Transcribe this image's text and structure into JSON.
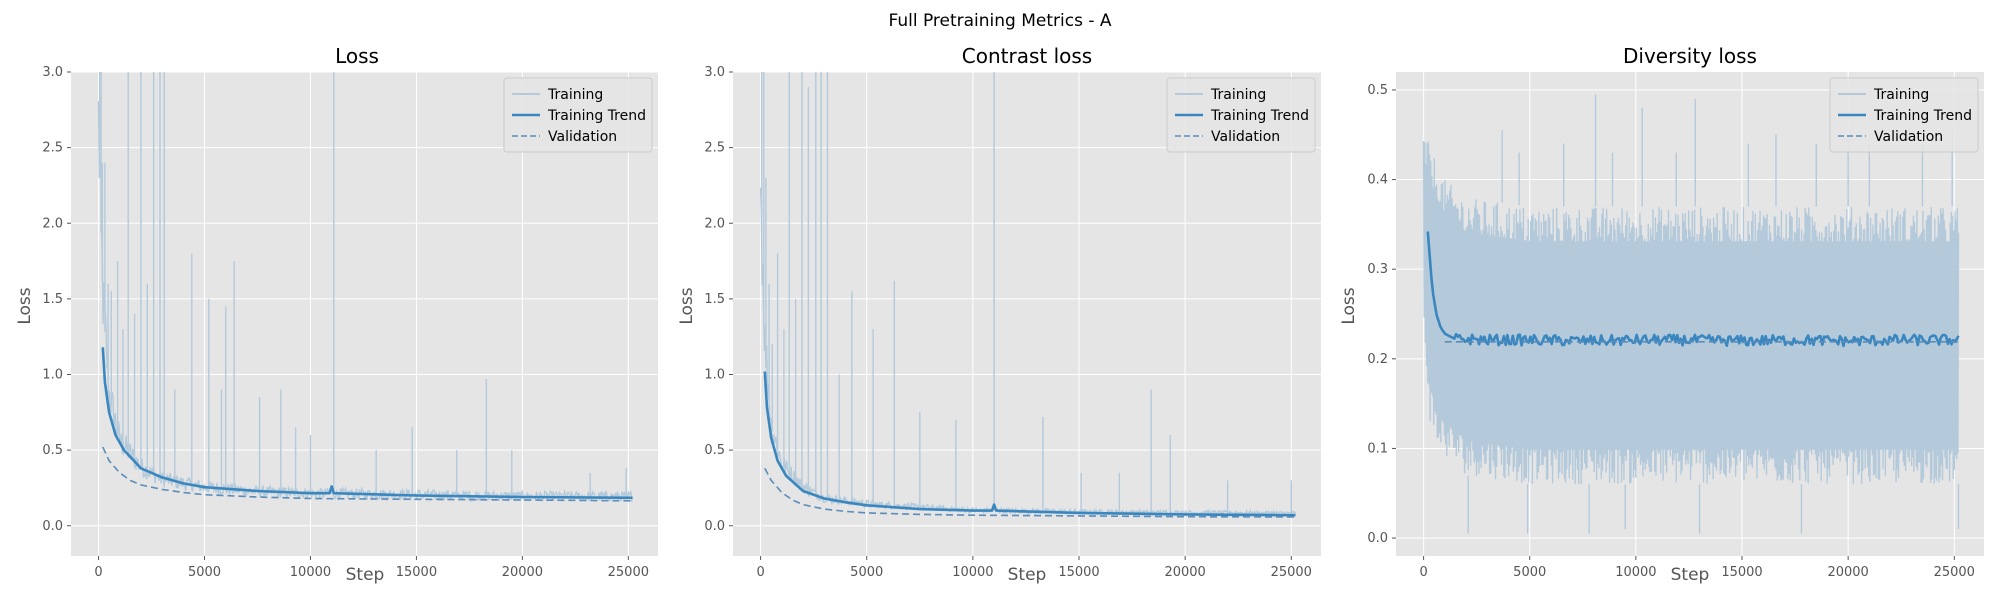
{
  "figure_title": "Full Pretraining Metrics - A",
  "colors": {
    "axes_bg": "#e5e5e5",
    "grid": "#ffffff",
    "training": "#b4cadb",
    "trend": "#3a87bf",
    "validation": "#5b8cba"
  },
  "chart_data": [
    {
      "type": "line",
      "title": "Loss",
      "xlabel": "Step",
      "ylabel": "Loss",
      "xlim": [
        -1300,
        26400
      ],
      "ylim": [
        -0.2,
        3.0
      ],
      "xticks": [
        0,
        5000,
        10000,
        15000,
        20000,
        25000
      ],
      "xtick_labels": [
        "0",
        "5000",
        "10000",
        "15000",
        "20000",
        "25000"
      ],
      "yticks": [
        0.0,
        0.5,
        1.0,
        1.5,
        2.0,
        2.5,
        3.0
      ],
      "ytick_labels": [
        "0.0",
        "0.5",
        "1.0",
        "1.5",
        "2.0",
        "2.5",
        "3.0"
      ],
      "grid": true,
      "legend": "top-right",
      "series": [
        {
          "name": "Training",
          "style": "raw",
          "x": [
            0,
            200,
            500,
            1000,
            2000,
            3000,
            5000,
            7500,
            10000,
            15000,
            20000,
            25200
          ],
          "y": [
            2.6,
            1.5,
            0.85,
            0.55,
            0.38,
            0.3,
            0.25,
            0.22,
            0.21,
            0.2,
            0.19,
            0.19
          ],
          "spikes": [
            {
              "x": 50,
              "y": 3.0
            },
            {
              "x": 120,
              "y": 3.0
            },
            {
              "x": 180,
              "y": 2.4
            },
            {
              "x": 300,
              "y": 2.4
            },
            {
              "x": 450,
              "y": 1.6
            },
            {
              "x": 600,
              "y": 1.55
            },
            {
              "x": 900,
              "y": 1.75
            },
            {
              "x": 1150,
              "y": 1.3
            },
            {
              "x": 1400,
              "y": 3.0
            },
            {
              "x": 1700,
              "y": 1.4
            },
            {
              "x": 2000,
              "y": 3.0
            },
            {
              "x": 2300,
              "y": 1.6
            },
            {
              "x": 2600,
              "y": 3.0
            },
            {
              "x": 2900,
              "y": 3.0
            },
            {
              "x": 3100,
              "y": 3.0
            },
            {
              "x": 3600,
              "y": 0.9
            },
            {
              "x": 4400,
              "y": 1.8
            },
            {
              "x": 5200,
              "y": 1.5
            },
            {
              "x": 5800,
              "y": 0.9
            },
            {
              "x": 6000,
              "y": 1.45
            },
            {
              "x": 6400,
              "y": 1.75
            },
            {
              "x": 7600,
              "y": 0.85
            },
            {
              "x": 8600,
              "y": 0.9
            },
            {
              "x": 9300,
              "y": 0.65
            },
            {
              "x": 10000,
              "y": 0.6
            },
            {
              "x": 11100,
              "y": 3.0
            },
            {
              "x": 13100,
              "y": 0.5
            },
            {
              "x": 14800,
              "y": 0.65
            },
            {
              "x": 16900,
              "y": 0.5
            },
            {
              "x": 18300,
              "y": 0.97
            },
            {
              "x": 19500,
              "y": 0.5
            },
            {
              "x": 23200,
              "y": 0.35
            },
            {
              "x": 24900,
              "y": 0.38
            }
          ]
        },
        {
          "name": "Training Trend",
          "style": "trend",
          "x": [
            200,
            300,
            500,
            800,
            1200,
            2000,
            3000,
            4000,
            5000,
            7500,
            10000,
            10900,
            11000,
            11100,
            15000,
            20000,
            25200
          ],
          "y": [
            1.18,
            0.95,
            0.75,
            0.6,
            0.5,
            0.38,
            0.32,
            0.28,
            0.255,
            0.23,
            0.215,
            0.215,
            0.26,
            0.215,
            0.2,
            0.19,
            0.185
          ]
        },
        {
          "name": "Validation",
          "style": "dashed",
          "x": [
            200,
            500,
            1000,
            1500,
            2000,
            3000,
            4000,
            5000,
            7500,
            10000,
            15000,
            20000,
            25200
          ],
          "y": [
            0.52,
            0.43,
            0.35,
            0.3,
            0.27,
            0.24,
            0.22,
            0.205,
            0.19,
            0.18,
            0.175,
            0.17,
            0.165
          ]
        }
      ]
    },
    {
      "type": "line",
      "title": "Contrast loss",
      "xlabel": "Step",
      "ylabel": "Loss",
      "xlim": [
        -1300,
        26400
      ],
      "ylim": [
        -0.2,
        3.0
      ],
      "xticks": [
        0,
        5000,
        10000,
        15000,
        20000,
        25000
      ],
      "xtick_labels": [
        "0",
        "5000",
        "10000",
        "15000",
        "20000",
        "25000"
      ],
      "yticks": [
        0.0,
        0.5,
        1.0,
        1.5,
        2.0,
        2.5,
        3.0
      ],
      "ytick_labels": [
        "0.0",
        "0.5",
        "1.0",
        "1.5",
        "2.0",
        "2.5",
        "3.0"
      ],
      "grid": true,
      "legend": "top-right",
      "series": [
        {
          "name": "Training",
          "style": "raw",
          "x": [
            0,
            200,
            500,
            1000,
            2000,
            3000,
            5000,
            7500,
            10000,
            15000,
            20000,
            25200
          ],
          "y": [
            2.2,
            1.2,
            0.65,
            0.4,
            0.25,
            0.18,
            0.14,
            0.12,
            0.1,
            0.09,
            0.085,
            0.08
          ],
          "spikes": [
            {
              "x": 50,
              "y": 3.0
            },
            {
              "x": 150,
              "y": 3.0
            },
            {
              "x": 250,
              "y": 2.3
            },
            {
              "x": 400,
              "y": 1.6
            },
            {
              "x": 550,
              "y": 1.2
            },
            {
              "x": 800,
              "y": 1.8
            },
            {
              "x": 1100,
              "y": 1.3
            },
            {
              "x": 1350,
              "y": 3.0
            },
            {
              "x": 1650,
              "y": 1.5
            },
            {
              "x": 1950,
              "y": 3.0
            },
            {
              "x": 2250,
              "y": 2.9
            },
            {
              "x": 2600,
              "y": 3.0
            },
            {
              "x": 2850,
              "y": 3.0
            },
            {
              "x": 3150,
              "y": 3.0
            },
            {
              "x": 3700,
              "y": 1.0
            },
            {
              "x": 4300,
              "y": 1.55
            },
            {
              "x": 5300,
              "y": 1.3
            },
            {
              "x": 6300,
              "y": 1.62
            },
            {
              "x": 7500,
              "y": 0.75
            },
            {
              "x": 9200,
              "y": 0.7
            },
            {
              "x": 11000,
              "y": 3.0
            },
            {
              "x": 13300,
              "y": 0.72
            },
            {
              "x": 15100,
              "y": 0.35
            },
            {
              "x": 16900,
              "y": 0.35
            },
            {
              "x": 18400,
              "y": 0.9
            },
            {
              "x": 19300,
              "y": 0.6
            },
            {
              "x": 22000,
              "y": 0.3
            },
            {
              "x": 25000,
              "y": 0.3
            }
          ]
        },
        {
          "name": "Training Trend",
          "style": "trend",
          "x": [
            200,
            300,
            500,
            800,
            1200,
            2000,
            3000,
            4000,
            5000,
            7500,
            10000,
            10900,
            11000,
            11100,
            15000,
            20000,
            25200
          ],
          "y": [
            1.02,
            0.78,
            0.58,
            0.43,
            0.33,
            0.23,
            0.18,
            0.155,
            0.135,
            0.11,
            0.1,
            0.1,
            0.14,
            0.1,
            0.085,
            0.075,
            0.07
          ]
        },
        {
          "name": "Validation",
          "style": "dashed",
          "x": [
            200,
            500,
            1000,
            1500,
            2000,
            3000,
            4000,
            5000,
            7500,
            10000,
            15000,
            20000,
            25200
          ],
          "y": [
            0.38,
            0.3,
            0.22,
            0.17,
            0.14,
            0.11,
            0.095,
            0.085,
            0.075,
            0.07,
            0.065,
            0.06,
            0.058
          ]
        }
      ]
    },
    {
      "type": "line",
      "title": "Diversity loss",
      "xlabel": "Step",
      "ylabel": "Loss",
      "xlim": [
        -1300,
        26400
      ],
      "ylim": [
        -0.02,
        0.52
      ],
      "xticks": [
        0,
        5000,
        10000,
        15000,
        20000,
        25000
      ],
      "xtick_labels": [
        "0",
        "5000",
        "10000",
        "15000",
        "20000",
        "25000"
      ],
      "yticks": [
        0.0,
        0.1,
        0.2,
        0.3,
        0.4,
        0.5
      ],
      "ytick_labels": [
        "0.0",
        "0.1",
        "0.2",
        "0.3",
        "0.4",
        "0.5"
      ],
      "grid": true,
      "legend": "top-right",
      "series": [
        {
          "name": "Training",
          "style": "band",
          "x": [
            0,
            300,
            600,
            1000,
            2000,
            5000,
            10000,
            15000,
            20000,
            25200
          ],
          "y_low": [
            0.23,
            0.13,
            0.1,
            0.09,
            0.07,
            0.06,
            0.06,
            0.06,
            0.06,
            0.06
          ],
          "y_high": [
            0.45,
            0.44,
            0.42,
            0.4,
            0.38,
            0.37,
            0.37,
            0.37,
            0.37,
            0.37
          ],
          "spikes": [
            {
              "x": 3700,
              "y": 0.455
            },
            {
              "x": 4500,
              "y": 0.43
            },
            {
              "x": 6600,
              "y": 0.44
            },
            {
              "x": 8100,
              "y": 0.495
            },
            {
              "x": 8900,
              "y": 0.43
            },
            {
              "x": 10300,
              "y": 0.48
            },
            {
              "x": 11900,
              "y": 0.43
            },
            {
              "x": 12800,
              "y": 0.49
            },
            {
              "x": 15300,
              "y": 0.44
            },
            {
              "x": 16600,
              "y": 0.45
            },
            {
              "x": 18500,
              "y": 0.44
            },
            {
              "x": 20000,
              "y": 0.45
            },
            {
              "x": 21000,
              "y": 0.44
            },
            {
              "x": 23500,
              "y": 0.44
            },
            {
              "x": 24900,
              "y": 0.455
            },
            {
              "x": 2100,
              "y": 0.005
            },
            {
              "x": 4900,
              "y": 0.005
            },
            {
              "x": 7800,
              "y": 0.005
            },
            {
              "x": 9500,
              "y": 0.01
            },
            {
              "x": 13000,
              "y": 0.005
            },
            {
              "x": 17800,
              "y": 0.005
            },
            {
              "x": 25200,
              "y": 0.01
            }
          ]
        },
        {
          "name": "Training Trend",
          "style": "trend",
          "x": [
            200,
            400,
            600,
            800,
            1000,
            1500,
            2000,
            3000,
            5000,
            7500,
            10000,
            12500,
            15000,
            17500,
            20000,
            22500,
            25200
          ],
          "y": [
            0.342,
            0.28,
            0.25,
            0.235,
            0.228,
            0.222,
            0.222,
            0.221,
            0.221,
            0.22,
            0.221,
            0.221,
            0.22,
            0.221,
            0.22,
            0.221,
            0.221
          ]
        },
        {
          "name": "Validation",
          "style": "dashed",
          "x": [
            1000,
            5000,
            10000,
            15000,
            20000,
            25200
          ],
          "y": [
            0.219,
            0.219,
            0.219,
            0.219,
            0.219,
            0.219
          ]
        }
      ]
    }
  ]
}
